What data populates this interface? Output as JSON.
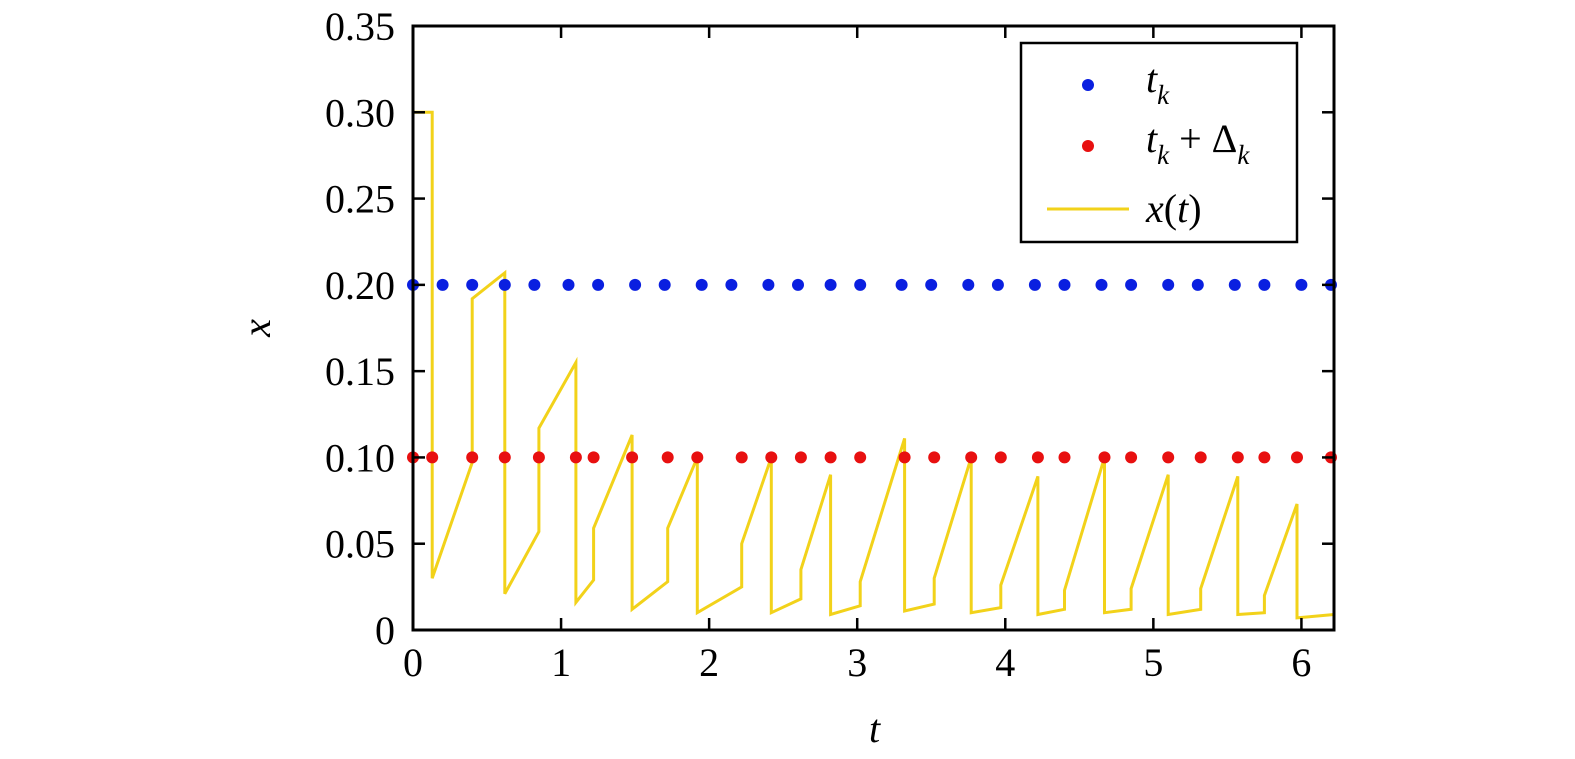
{
  "chart_data": {
    "type": "scatter",
    "xlabel": "t",
    "ylabel": "x",
    "xlim": [
      0,
      6.22
    ],
    "ylim": [
      0,
      0.35
    ],
    "xticks": [
      0,
      1,
      2,
      3,
      4,
      5,
      6
    ],
    "xtick_labels": [
      "0",
      "1",
      "2",
      "3",
      "4",
      "5",
      "6"
    ],
    "yticks": [
      0,
      0.05,
      0.1,
      0.15,
      0.2,
      0.25,
      0.3,
      0.35
    ],
    "ytick_labels": [
      "0",
      "0.05",
      "0.10",
      "0.15",
      "0.20",
      "0.25",
      "0.30",
      "0.35"
    ],
    "grid": false,
    "legend_position": "top-right",
    "legend": {
      "tk": {
        "base": "t",
        "sub": "k"
      },
      "tk_delta": {
        "base": "t",
        "sub": "k",
        "op": " + ",
        "delta": "Δ",
        "delta_sub": "k"
      },
      "xt": {
        "f": "x",
        "open": "(",
        "arg": "t",
        "close": ")"
      }
    },
    "colors": {
      "tk": "#0a1fe0",
      "tk_delta": "#e81010",
      "xt": "#f2d21a"
    },
    "series": [
      {
        "key": "tk",
        "marker": "dot",
        "x": [
          0.0,
          0.2,
          0.4,
          0.62,
          0.82,
          1.05,
          1.25,
          1.5,
          1.7,
          1.95,
          2.15,
          2.4,
          2.6,
          2.82,
          3.02,
          3.3,
          3.5,
          3.75,
          3.95,
          4.2,
          4.4,
          4.65,
          4.85,
          5.1,
          5.3,
          5.55,
          5.75,
          6.0,
          6.2
        ],
        "y": [
          0.2,
          0.2,
          0.2,
          0.2,
          0.2,
          0.2,
          0.2,
          0.2,
          0.2,
          0.2,
          0.2,
          0.2,
          0.2,
          0.2,
          0.2,
          0.2,
          0.2,
          0.2,
          0.2,
          0.2,
          0.2,
          0.2,
          0.2,
          0.2,
          0.2,
          0.2,
          0.2,
          0.2,
          0.2
        ]
      },
      {
        "key": "tk_delta",
        "marker": "dot",
        "x": [
          0.0,
          0.13,
          0.4,
          0.62,
          0.85,
          1.1,
          1.22,
          1.48,
          1.72,
          1.92,
          2.22,
          2.42,
          2.62,
          2.82,
          3.02,
          3.32,
          3.52,
          3.77,
          3.97,
          4.22,
          4.4,
          4.67,
          4.85,
          5.1,
          5.32,
          5.57,
          5.75,
          5.97,
          6.2
        ],
        "y": [
          0.1,
          0.1,
          0.1,
          0.1,
          0.1,
          0.1,
          0.1,
          0.1,
          0.1,
          0.1,
          0.1,
          0.1,
          0.1,
          0.1,
          0.1,
          0.1,
          0.1,
          0.1,
          0.1,
          0.1,
          0.1,
          0.1,
          0.1,
          0.1,
          0.1,
          0.1,
          0.1,
          0.1,
          0.1
        ]
      },
      {
        "key": "xt",
        "marker": "line",
        "x": [
          0.0,
          0.13,
          0.13,
          0.4,
          0.4,
          0.62,
          0.62,
          0.85,
          0.85,
          1.1,
          1.1,
          1.22,
          1.22,
          1.48,
          1.48,
          1.72,
          1.72,
          1.92,
          1.92,
          2.22,
          2.22,
          2.42,
          2.42,
          2.62,
          2.62,
          2.82,
          2.82,
          3.02,
          3.02,
          3.32,
          3.32,
          3.52,
          3.52,
          3.77,
          3.77,
          3.97,
          3.97,
          4.22,
          4.22,
          4.4,
          4.4,
          4.67,
          4.67,
          4.85,
          4.85,
          5.1,
          5.1,
          5.32,
          5.32,
          5.57,
          5.57,
          5.75,
          5.75,
          5.97,
          5.97,
          6.22
        ],
        "y": [
          0.3,
          0.3,
          0.03,
          0.097,
          0.192,
          0.207,
          0.021,
          0.057,
          0.117,
          0.155,
          0.016,
          0.029,
          0.059,
          0.113,
          0.012,
          0.028,
          0.059,
          0.1,
          0.01,
          0.025,
          0.05,
          0.1,
          0.01,
          0.018,
          0.035,
          0.09,
          0.009,
          0.014,
          0.028,
          0.111,
          0.011,
          0.015,
          0.03,
          0.1,
          0.01,
          0.013,
          0.026,
          0.089,
          0.009,
          0.012,
          0.023,
          0.1,
          0.01,
          0.012,
          0.024,
          0.09,
          0.009,
          0.012,
          0.024,
          0.089,
          0.009,
          0.01,
          0.02,
          0.073,
          0.007,
          0.009
        ]
      }
    ]
  }
}
